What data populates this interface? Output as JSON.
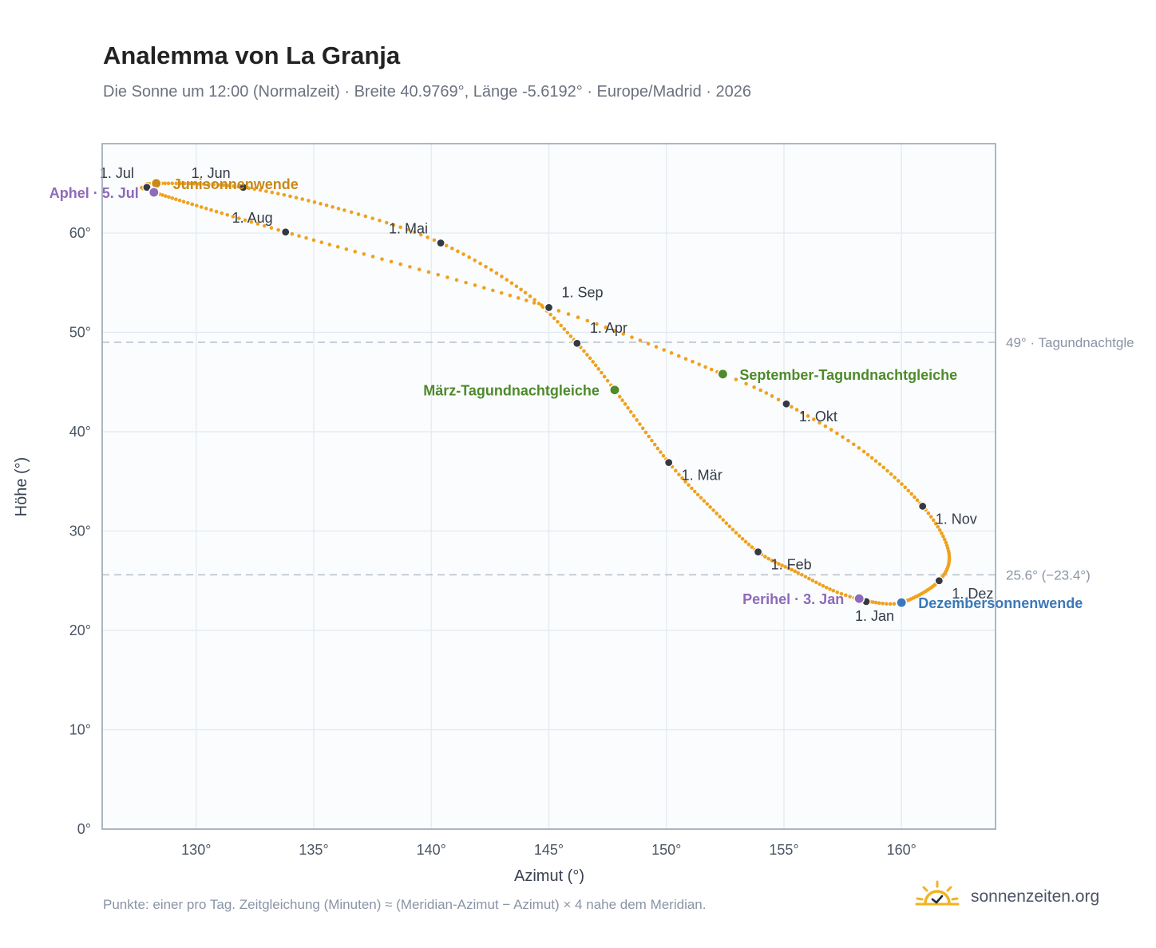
{
  "header": {
    "title": "Analemma von La Granja",
    "subtitle": "Die Sonne um 12:00 (Normalzeit) · Breite 40.9769°, Länge -5.6192° · Europe/Madrid · 2026"
  },
  "footer": {
    "note": "Punkte: einer pro Tag. Zeitgleichung (Minuten) ≈ (Meridian-Azimut − Azimut) × 4 nahe dem Meridian.",
    "brand": "sonnenzeiten.org"
  },
  "colors": {
    "path": "#f0a21e",
    "month_marker": "#333a45",
    "equinox": "#4f8a2b",
    "june_solstice": "#c8891a",
    "december_solstice": "#3b78b8",
    "apsis": "#8e6ab8",
    "reference_line": "#b9c3cf"
  },
  "chart_data": {
    "type": "scatter",
    "xlabel": "Azimut (°)",
    "ylabel": "Höhe (°)",
    "xlim": [
      126,
      164
    ],
    "ylim": [
      0,
      69
    ],
    "xticks": [
      130,
      135,
      140,
      145,
      150,
      155,
      160
    ],
    "yticks": [
      0,
      10,
      20,
      30,
      40,
      50,
      60
    ],
    "tick_suffix": "°",
    "grid": true,
    "path_anchor_points": [
      {
        "date": "2026-01-01",
        "x": 158.5,
        "y": 22.9
      },
      {
        "date": "2026-01-10",
        "x": 157.1,
        "y": 24.0
      },
      {
        "date": "2026-01-20",
        "x": 155.6,
        "y": 25.8
      },
      {
        "date": "2026-02-01",
        "x": 153.9,
        "y": 27.9
      },
      {
        "date": "2026-02-15",
        "x": 152.0,
        "y": 32.1
      },
      {
        "date": "2026-03-01",
        "x": 150.1,
        "y": 36.9
      },
      {
        "date": "2026-03-20",
        "x": 147.8,
        "y": 44.2
      },
      {
        "date": "2026-04-01",
        "x": 146.2,
        "y": 48.9
      },
      {
        "date": "2026-04-15",
        "x": 144.0,
        "y": 54.0
      },
      {
        "date": "2026-05-01",
        "x": 140.4,
        "y": 59.0
      },
      {
        "date": "2026-05-15",
        "x": 136.3,
        "y": 62.3
      },
      {
        "date": "2026-06-01",
        "x": 132.0,
        "y": 64.6
      },
      {
        "date": "2026-06-21",
        "x": 128.3,
        "y": 65.0
      },
      {
        "date": "2026-07-01",
        "x": 127.9,
        "y": 64.6
      },
      {
        "date": "2026-07-05",
        "x": 128.2,
        "y": 64.1
      },
      {
        "date": "2026-08-01",
        "x": 133.8,
        "y": 60.1
      },
      {
        "date": "2026-09-01",
        "x": 145.0,
        "y": 52.5
      },
      {
        "date": "2026-09-23",
        "x": 152.4,
        "y": 45.8
      },
      {
        "date": "2026-10-01",
        "x": 155.1,
        "y": 42.8
      },
      {
        "date": "2026-10-15",
        "x": 158.4,
        "y": 38.0
      },
      {
        "date": "2026-11-01",
        "x": 160.9,
        "y": 32.5
      },
      {
        "date": "2026-11-15",
        "x": 162.0,
        "y": 28.0
      },
      {
        "date": "2026-12-01",
        "x": 161.6,
        "y": 25.0
      },
      {
        "date": "2026-12-21",
        "x": 160.0,
        "y": 22.8
      },
      {
        "date": "2026-12-31",
        "x": 158.6,
        "y": 22.9
      }
    ],
    "month_markers": [
      {
        "label": "1. Jan",
        "x": 158.5,
        "y": 22.9,
        "anchor": "below"
      },
      {
        "label": "1. Feb",
        "x": 153.9,
        "y": 27.9,
        "anchor": "below-right"
      },
      {
        "label": "1. Mär",
        "x": 150.1,
        "y": 36.9,
        "anchor": "below-right"
      },
      {
        "label": "1. Apr",
        "x": 146.2,
        "y": 48.9,
        "anchor": "above-right"
      },
      {
        "label": "1. Mai",
        "x": 140.4,
        "y": 59.0,
        "anchor": "above-left"
      },
      {
        "label": "1. Jun",
        "x": 132.0,
        "y": 64.6,
        "anchor": "above-left"
      },
      {
        "label": "1. Jul",
        "x": 127.9,
        "y": 64.6,
        "anchor": "above-left"
      },
      {
        "label": "1. Aug",
        "x": 133.8,
        "y": 60.1,
        "anchor": "above-left"
      },
      {
        "label": "1. Sep",
        "x": 145.0,
        "y": 52.5,
        "anchor": "above-right"
      },
      {
        "label": "1. Okt",
        "x": 155.1,
        "y": 42.8,
        "anchor": "below-right"
      },
      {
        "label": "1. Nov",
        "x": 160.9,
        "y": 32.5,
        "anchor": "below-right"
      },
      {
        "label": "1. Dez",
        "x": 161.6,
        "y": 25.0,
        "anchor": "below-right"
      }
    ],
    "events": [
      {
        "label": "Junisonnenwende",
        "x": 128.3,
        "y": 65.0,
        "kind": "june_solstice",
        "side": "right"
      },
      {
        "label": "Aphel · 5. Jul",
        "x": 128.2,
        "y": 64.1,
        "kind": "apsis",
        "side": "left"
      },
      {
        "label": "März-Tagundnachtgleiche",
        "x": 147.8,
        "y": 44.2,
        "kind": "equinox",
        "side": "left"
      },
      {
        "label": "September-Tagundnachtgleiche",
        "x": 152.4,
        "y": 45.8,
        "kind": "equinox",
        "side": "right"
      },
      {
        "label": "Perihel · 3. Jan",
        "x": 158.2,
        "y": 23.2,
        "kind": "apsis",
        "side": "left"
      },
      {
        "label": "Dezembersonnenwende",
        "x": 160.0,
        "y": 22.8,
        "kind": "december_solstice",
        "side": "right"
      }
    ],
    "reference_lines": [
      {
        "y": 49.0,
        "label": "49° · Tagundnachtgle"
      },
      {
        "y": 25.6,
        "label": "25.6° (−23.4°)"
      }
    ]
  }
}
